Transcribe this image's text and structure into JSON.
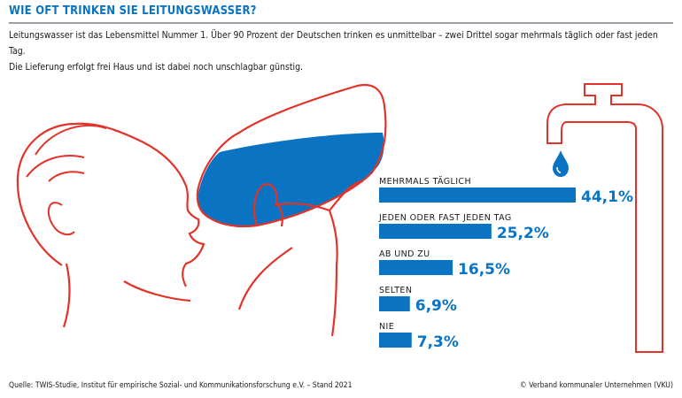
{
  "title": "WIE OFT TRINKEN SIE LEITUNGSWASSER?",
  "intro": {
    "line1": "Leitungswasser ist das Lebensmittel Nummer 1. Über 90 Prozent der Deutschen trinken es unmittelbar – zwei Drittel sogar mehrmals täglich oder fast jeden Tag.",
    "line2": "Die Lieferung erfolgt frei Haus und ist dabei noch unschlagbar günstig."
  },
  "footer": {
    "source": "Quelle: TWIS-Studie, Institut für empirische Sozial- und Kommunikationsforschung e.V. – Stand 2021",
    "copyright": "© Verband kommunaler Unternehmen (VKU)"
  },
  "colors": {
    "accent": "#0a74c2",
    "illustration_line": "#e2332a",
    "water": "#0a74c2"
  },
  "chart_data": {
    "type": "bar",
    "orientation": "horizontal",
    "unit": "%",
    "categories": [
      "MEHRMALS TÄGLICH",
      "JEDEN ODER FAST JEDEN TAG",
      "AB UND ZU",
      "SELTEN",
      "NIE"
    ],
    "values": [
      44.1,
      25.2,
      16.5,
      6.9,
      7.3
    ],
    "value_labels": [
      "44,1%",
      "25,2%",
      "16,5%",
      "6,9%",
      "7,3%"
    ],
    "title": "",
    "xlabel": "",
    "ylabel": "",
    "xlim": [
      0,
      50
    ],
    "grid": false,
    "legend": "none"
  }
}
